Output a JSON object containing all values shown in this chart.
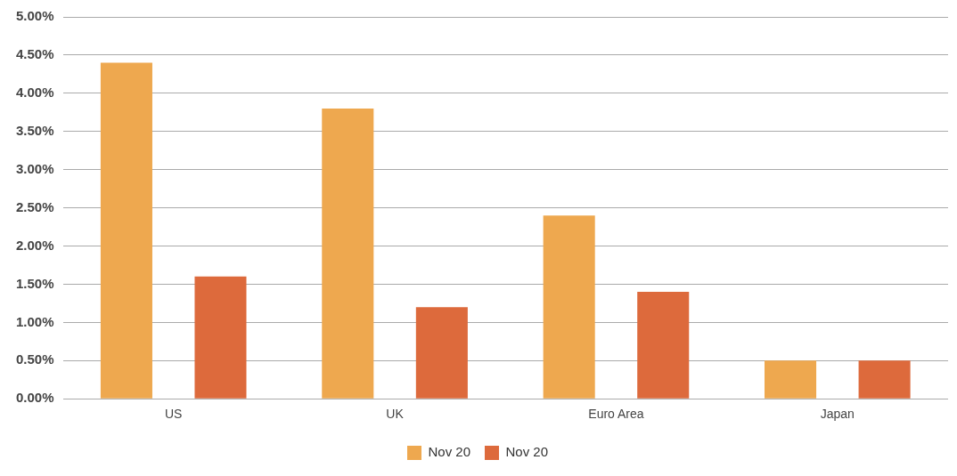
{
  "chart_data": {
    "type": "bar",
    "categories": [
      "US",
      "UK",
      "Euro Area",
      "Japan"
    ],
    "series": [
      {
        "name": "Nov 20",
        "color": "#eea84f",
        "values": [
          4.4,
          3.8,
          2.4,
          0.5
        ]
      },
      {
        "name": "Nov 20",
        "color": "#dd6a3c",
        "values": [
          1.6,
          1.2,
          1.4,
          0.5
        ]
      }
    ],
    "ylim": [
      0,
      5
    ],
    "yticks": [
      {
        "value": 0,
        "label": "0.00%"
      },
      {
        "value": 0.5,
        "label": "0.50%"
      },
      {
        "value": 1,
        "label": "1.00%"
      },
      {
        "value": 1.5,
        "label": "1.50%"
      },
      {
        "value": 2,
        "label": "2.00%"
      },
      {
        "value": 2.5,
        "label": "2.50%"
      },
      {
        "value": 3,
        "label": "3.00%"
      },
      {
        "value": 3.5,
        "label": "3.50%"
      },
      {
        "value": 4,
        "label": "4.00%"
      },
      {
        "value": 4.5,
        "label": "4.50%"
      },
      {
        "value": 5,
        "label": "5.00%"
      }
    ],
    "grid": "y",
    "legend": "bottom"
  }
}
